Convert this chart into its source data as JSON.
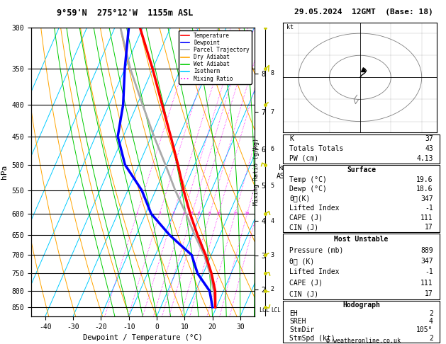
{
  "title_left": "9°59'N  275°12'W  1155m ASL",
  "title_right": "29.05.2024  12GMT  (Base: 18)",
  "xlabel": "Dewpoint / Temperature (°C)",
  "ylabel_left": "hPa",
  "pressure_levels": [
    300,
    350,
    400,
    450,
    500,
    550,
    600,
    650,
    700,
    750,
    800,
    850
  ],
  "pressure_min": 300,
  "pressure_max": 880,
  "temp_min": -45,
  "temp_max": 35,
  "isotherm_color": "#00CCFF",
  "dry_adiabat_color": "#FFA500",
  "wet_adiabat_color": "#00CC00",
  "mixing_ratio_color": "#FF00FF",
  "temp_color": "#FF0000",
  "dewpoint_color": "#0000FF",
  "parcel_color": "#AAAAAA",
  "legend_entries": [
    "Temperature",
    "Dewpoint",
    "Parcel Trajectory",
    "Dry Adiabat",
    "Wet Adiabat",
    "Isotherm",
    "Mixing Ratio"
  ],
  "legend_colors": [
    "#FF0000",
    "#0000FF",
    "#AAAAAA",
    "#FFA500",
    "#00CC00",
    "#00CCFF",
    "#FF00FF"
  ],
  "legend_styles": [
    "-",
    "-",
    "-",
    "-",
    "-",
    "-",
    ":"
  ],
  "mixing_ratio_values": [
    1,
    2,
    3,
    4,
    5,
    6,
    8,
    10,
    15,
    20,
    25
  ],
  "km_ticks": [
    2,
    3,
    4,
    5,
    6,
    7,
    8
  ],
  "table_data": {
    "K": 37,
    "Totals Totals": 43,
    "PW (cm)": 4.13,
    "Surface_Temp": 19.6,
    "Surface_Dewp": 18.6,
    "Surface_theta_e": 347,
    "Surface_LI": -1,
    "Surface_CAPE": 111,
    "Surface_CIN": 17,
    "MU_Pressure": 889,
    "MU_theta_e": 347,
    "MU_LI": -1,
    "MU_CAPE": 111,
    "MU_CIN": 17,
    "EH": 2,
    "SREH": 4,
    "StmDir": 105,
    "StmSpd": 2
  },
  "sounding_temp_p": [
    850,
    800,
    750,
    700,
    650,
    600,
    550,
    500,
    450,
    400,
    350,
    300
  ],
  "sounding_temp_t": [
    19.6,
    17.0,
    13.0,
    8.0,
    2.0,
    -4.0,
    -10.0,
    -16.0,
    -23.0,
    -31.0,
    -40.0,
    -51.0
  ],
  "sounding_dewp_t": [
    18.6,
    15.0,
    8.0,
    3.0,
    -8.0,
    -18.0,
    -25.0,
    -35.0,
    -42.0,
    -45.0,
    -50.0,
    -55.0
  ],
  "parcel_t": [
    19.6,
    16.5,
    12.5,
    7.5,
    1.0,
    -5.5,
    -13.0,
    -20.5,
    -29.0,
    -38.0,
    -48.0,
    -58.0
  ],
  "lcl_pressure": 860,
  "background_color": "#FFFFFF",
  "plot_bg_color": "#FFFFFF",
  "skew_factor": 45
}
